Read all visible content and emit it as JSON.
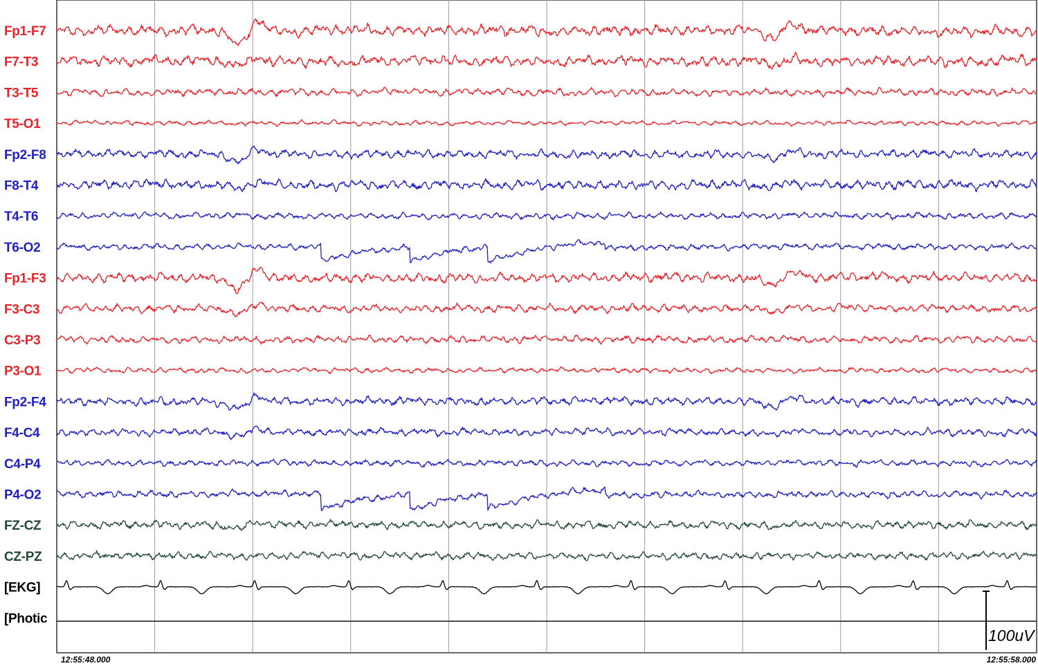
{
  "chart_data": {
    "type": "line",
    "title": "",
    "xlabel": "",
    "ylabel": "",
    "time_start": "12:55:48.000",
    "time_end": "12:55:58.000",
    "duration_seconds": 10,
    "grid": "vertical lines every 1 second",
    "scale_bar": {
      "label": "100uV",
      "value_uv": 100
    },
    "colors": {
      "left": "#e8242b",
      "right": "#1f1fc4",
      "midline": "#244a36",
      "other": "#000000",
      "grid": "#9a9a9a"
    },
    "channels": [
      {
        "name": "Fp1-F7",
        "group": "left",
        "amplitude": 1.0
      },
      {
        "name": "F7-T3",
        "group": "left",
        "amplitude": 1.0
      },
      {
        "name": "T3-T5",
        "group": "left",
        "amplitude": 0.7
      },
      {
        "name": "T5-O1",
        "group": "left",
        "amplitude": 0.45
      },
      {
        "name": "Fp2-F8",
        "group": "right",
        "amplitude": 0.8
      },
      {
        "name": "F8-T4",
        "group": "right",
        "amplitude": 0.9
      },
      {
        "name": "T4-T6",
        "group": "right",
        "amplitude": 0.6
      },
      {
        "name": "T6-O2",
        "group": "right",
        "amplitude": 0.6
      },
      {
        "name": "Fp1-F3",
        "group": "left",
        "amplitude": 0.9
      },
      {
        "name": "F3-C3",
        "group": "left",
        "amplitude": 0.75
      },
      {
        "name": "C3-P3",
        "group": "left",
        "amplitude": 0.7
      },
      {
        "name": "P3-O1",
        "group": "left",
        "amplitude": 0.5
      },
      {
        "name": "Fp2-F4",
        "group": "right",
        "amplitude": 0.8
      },
      {
        "name": "F4-C4",
        "group": "right",
        "amplitude": 0.7
      },
      {
        "name": "C4-P4",
        "group": "right",
        "amplitude": 0.6
      },
      {
        "name": "P4-O2",
        "group": "right",
        "amplitude": 0.65
      },
      {
        "name": "FZ-CZ",
        "group": "midline",
        "amplitude": 0.75
      },
      {
        "name": "CZ-PZ",
        "group": "midline",
        "amplitude": 0.7
      },
      {
        "name": "[EKG]",
        "group": "other",
        "amplitude": 0.0
      },
      {
        "name": "[Photic",
        "group": "other",
        "amplitude": 0.0
      }
    ],
    "events": {
      "eye_blink_seconds": [
        1.85,
        7.3
      ],
      "ekg_beats_seconds": [
        0.1,
        1.06,
        2.02,
        2.98,
        3.94,
        4.9,
        5.86,
        6.82,
        7.78,
        8.74,
        9.7
      ],
      "electrode_pop_seconds": [
        2.7,
        3.6,
        4.4
      ]
    }
  }
}
